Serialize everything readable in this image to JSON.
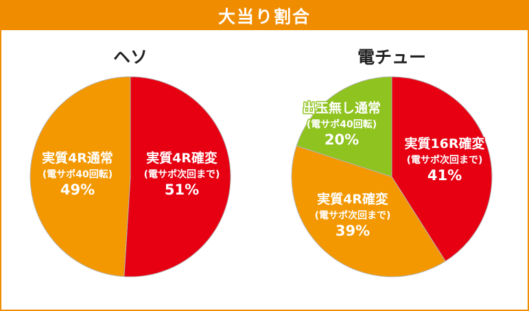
{
  "header": {
    "title": "大当り割合"
  },
  "colors": {
    "orange": "#f39800",
    "red": "#e60012",
    "green": "#8fc31f",
    "frame": "#f08c00"
  },
  "chart_data": [
    {
      "type": "pie",
      "title": "ヘソ",
      "start_angle_deg": 0,
      "direction": "clockwise",
      "slices": [
        {
          "name": "実質4R確変",
          "sub": "(電サポ次回まで)",
          "value": 51,
          "label": "51%",
          "color": "#e60012"
        },
        {
          "name": "実質4R通常",
          "sub": "(電サポ40回転)",
          "value": 49,
          "label": "49%",
          "color": "#f39800"
        }
      ]
    },
    {
      "type": "pie",
      "title": "電チュー",
      "start_angle_deg": 0,
      "direction": "clockwise",
      "slices": [
        {
          "name": "実質16R確変",
          "sub": "(電サポ次回まで)",
          "value": 41,
          "label": "41%",
          "color": "#e60012"
        },
        {
          "name": "実質4R確変",
          "sub": "(電サポ次回まで)",
          "value": 39,
          "label": "39%",
          "color": "#f39800"
        },
        {
          "name": "出玉無し通常",
          "sub": "(電サポ40回転)",
          "value": 20,
          "label": "20%",
          "color": "#8fc31f"
        }
      ]
    }
  ]
}
